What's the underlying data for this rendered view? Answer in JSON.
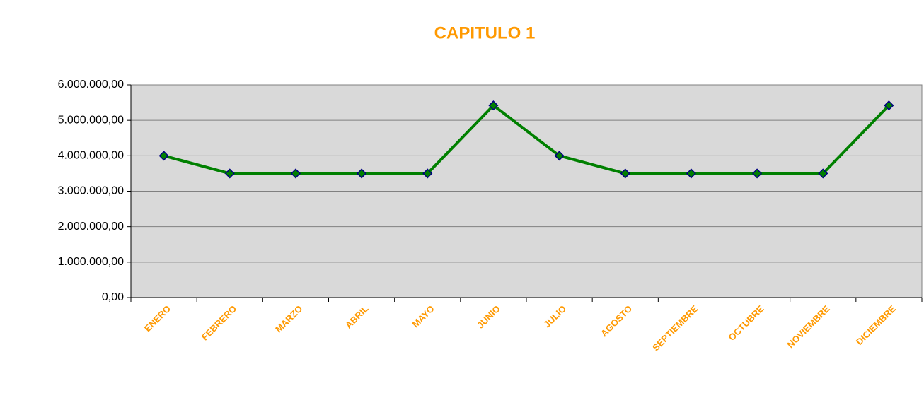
{
  "chart_data": {
    "type": "line",
    "title": "CAPITULO  1",
    "categories": [
      "ENERO",
      "FEBRERO",
      "MARZO",
      "ABRIL",
      "MAYO",
      "JUNIO",
      "JULIO",
      "AGOSTO",
      "SEPTIEMBRE",
      "OCTUBRE",
      "NOVIEMBRE",
      "DICIEMBRE"
    ],
    "series": [
      {
        "name": "CAPITULO  1",
        "color": "#008000",
        "marker_color": "#008000",
        "marker_edge": "#000080",
        "values": [
          4000000,
          3500000,
          3500000,
          3500000,
          3500000,
          5420000,
          4000000,
          3500000,
          3500000,
          3500000,
          3500000,
          5420000
        ]
      }
    ],
    "ylim": [
      0,
      6000000
    ],
    "yticks": [
      {
        "value": 0,
        "label": "0,00"
      },
      {
        "value": 1000000,
        "label": "1.000.000,00"
      },
      {
        "value": 2000000,
        "label": "2.000.000,00"
      },
      {
        "value": 3000000,
        "label": "3.000.000,00"
      },
      {
        "value": 4000000,
        "label": "4.000.000,00"
      },
      {
        "value": 5000000,
        "label": "5.000.000,00"
      },
      {
        "value": 6000000,
        "label": "6.000.000,00"
      }
    ],
    "grid": true,
    "plot_background": "#d9d9d9"
  }
}
